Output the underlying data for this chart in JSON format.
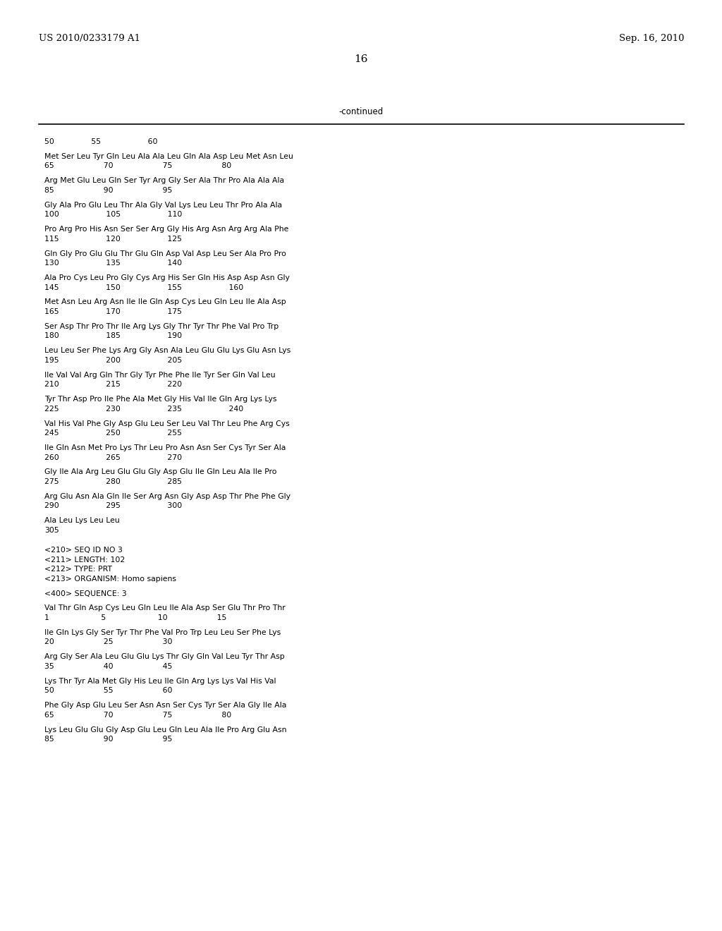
{
  "header_left": "US 2010/0233179 A1",
  "header_right": "Sep. 16, 2010",
  "page_number": "16",
  "continued_label": "-continued",
  "background_color": "#ffffff",
  "text_color": "#000000",
  "content_lines": [
    [
      "50",
      "               55",
      "                   60"
    ],
    null,
    "Met Ser Leu Tyr Gln Leu Ala Ala Leu Gln Ala Asp Leu Met Asn Leu",
    "65                    70                    75                    80",
    null,
    "Arg Met Glu Leu Gln Ser Tyr Arg Gly Ser Ala Thr Pro Ala Ala Ala",
    "85                    90                    95",
    null,
    "Gly Ala Pro Glu Leu Thr Ala Gly Val Lys Leu Leu Thr Pro Ala Ala",
    "100                   105                   110",
    null,
    "Pro Arg Pro His Asn Ser Ser Arg Gly His Arg Asn Arg Arg Ala Phe",
    "115                   120                   125",
    null,
    "Gln Gly Pro Glu Glu Thr Glu Gln Asp Val Asp Leu Ser Ala Pro Pro",
    "130                   135                   140",
    null,
    "Ala Pro Cys Leu Pro Gly Cys Arg His Ser Gln His Asp Asp Asn Gly",
    "145                   150                   155                   160",
    null,
    "Met Asn Leu Arg Asn Ile Ile Gln Asp Cys Leu Gln Leu Ile Ala Asp",
    "165                   170                   175",
    null,
    "Ser Asp Thr Pro Thr Ile Arg Lys Gly Thr Tyr Thr Phe Val Pro Trp",
    "180                   185                   190",
    null,
    "Leu Leu Ser Phe Lys Arg Gly Asn Ala Leu Glu Glu Lys Glu Asn Lys",
    "195                   200                   205",
    null,
    "Ile Val Val Arg Gln Thr Gly Tyr Phe Phe Ile Tyr Ser Gln Val Leu",
    "210                   215                   220",
    null,
    "Tyr Thr Asp Pro Ile Phe Ala Met Gly His Val Ile Gln Arg Lys Lys",
    "225                   230                   235                   240",
    null,
    "Val His Val Phe Gly Asp Glu Leu Ser Leu Val Thr Leu Phe Arg Cys",
    "245                   250                   255",
    null,
    "Ile Gln Asn Met Pro Lys Thr Leu Pro Asn Asn Ser Cys Tyr Ser Ala",
    "260                   265                   270",
    null,
    "Gly Ile Ala Arg Leu Glu Glu Gly Asp Glu Ile Gln Leu Ala Ile Pro",
    "275                   280                   285",
    null,
    "Arg Glu Asn Ala Gln Ile Ser Arg Asn Gly Asp Asp Thr Phe Phe Gly",
    "290                   295                   300",
    null,
    "Ala Leu Lys Leu Leu",
    "305",
    null,
    null,
    "<210> SEQ ID NO 3",
    "<211> LENGTH: 102",
    "<212> TYPE: PRT",
    "<213> ORGANISM: Homo sapiens",
    null,
    "<400> SEQUENCE: 3",
    null,
    "Val Thr Gln Asp Cys Leu Gln Leu Ile Ala Asp Ser Glu Thr Pro Thr",
    "1                     5                     10                    15",
    null,
    "Ile Gln Lys Gly Ser Tyr Thr Phe Val Pro Trp Leu Leu Ser Phe Lys",
    "20                    25                    30",
    null,
    "Arg Gly Ser Ala Leu Glu Glu Lys Thr Gly Gln Val Leu Tyr Thr Asp",
    "35                    40                    45",
    null,
    "Lys Thr Tyr Ala Met Gly His Leu Ile Gln Arg Lys Lys Val His Val",
    "50                    55                    60",
    null,
    "Phe Gly Asp Glu Leu Ser Asn Asn Ser Cys Tyr Ser Ala Gly Ile Ala",
    "65                    70                    75                    80",
    null,
    "Lys Leu Glu Glu Gly Asp Glu Leu Gln Leu Ala Ile Pro Arg Glu Asn",
    "85                    90                    95"
  ]
}
